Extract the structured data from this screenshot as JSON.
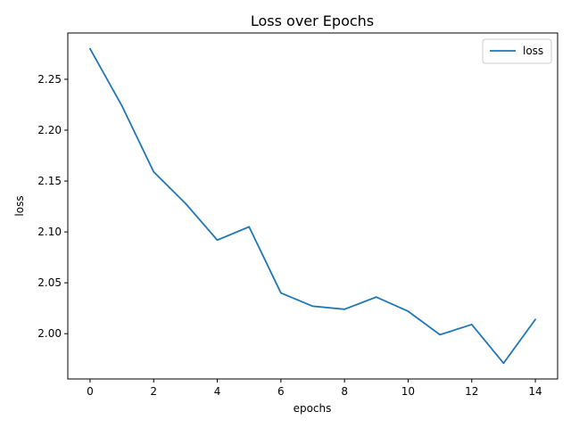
{
  "chart_data": {
    "type": "line",
    "title": "Loss over Epochs",
    "xlabel": "epochs",
    "ylabel": "loss",
    "x": [
      0,
      1,
      2,
      3,
      4,
      5,
      6,
      7,
      8,
      9,
      10,
      11,
      12,
      13,
      14
    ],
    "series": [
      {
        "name": "loss",
        "color": "#1f77b4",
        "values": [
          2.28,
          2.224,
          2.159,
          2.128,
          2.092,
          2.105,
          2.04,
          2.027,
          2.024,
          2.036,
          2.022,
          1.999,
          2.009,
          1.971,
          2.014
        ]
      }
    ],
    "xlim": [
      -0.7,
      14.7
    ],
    "ylim": [
      1.9555,
      2.2955
    ],
    "xticks": [
      0,
      2,
      4,
      6,
      8,
      10,
      12,
      14
    ],
    "xtick_labels": [
      "0",
      "2",
      "4",
      "6",
      "8",
      "10",
      "12",
      "14"
    ],
    "yticks": [
      2.0,
      2.05,
      2.1,
      2.15,
      2.2,
      2.25
    ],
    "ytick_labels": [
      "2.00",
      "2.05",
      "2.10",
      "2.15",
      "2.20",
      "2.25"
    ],
    "grid": false,
    "legend_position": "top-right"
  }
}
